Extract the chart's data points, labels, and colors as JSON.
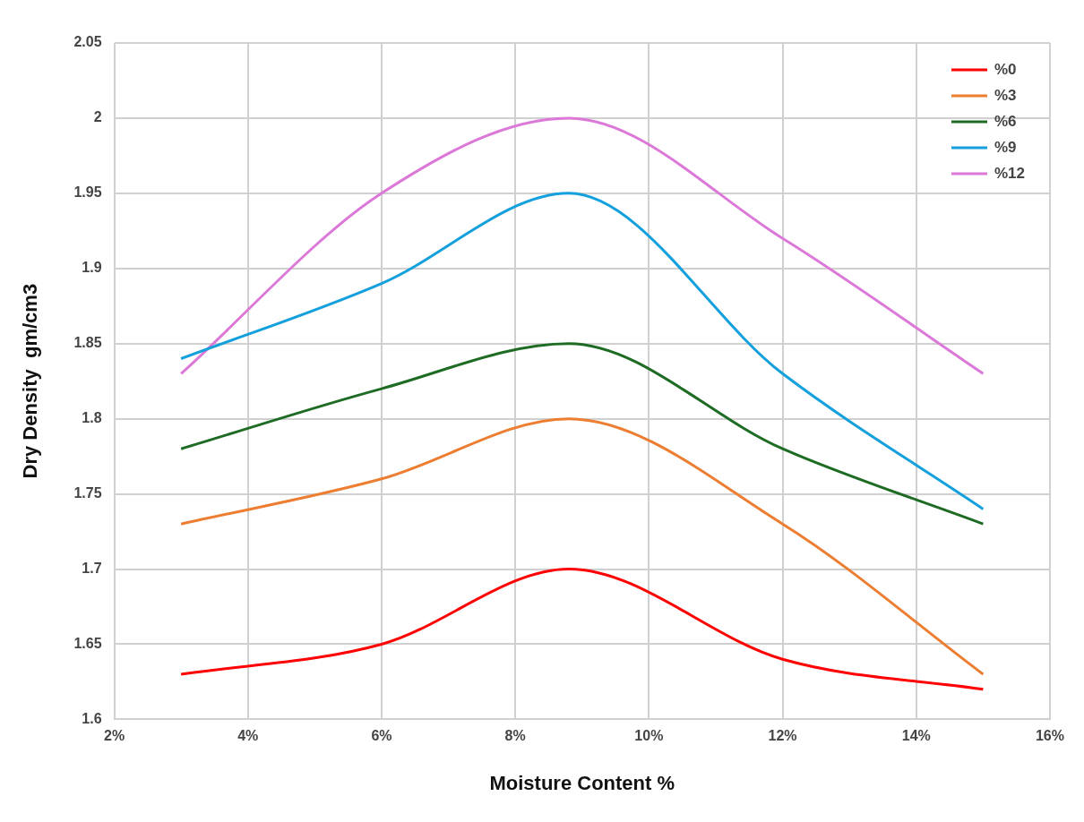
{
  "chart_data": {
    "type": "line",
    "xlabel": "Moisture Content %",
    "ylabel": "Dry Density  gm/cm3",
    "x": [
      3,
      6,
      8.8,
      12,
      15
    ],
    "series": [
      {
        "name": "%0",
        "color": "#ff0000",
        "values": [
          1.63,
          1.65,
          1.7,
          1.64,
          1.62
        ]
      },
      {
        "name": "%3",
        "color": "#ed7d31",
        "values": [
          1.73,
          1.76,
          1.8,
          1.73,
          1.63
        ]
      },
      {
        "name": "%6",
        "color": "#1e6b24",
        "values": [
          1.78,
          1.82,
          1.85,
          1.78,
          1.73
        ]
      },
      {
        "name": "%9",
        "color": "#14a0dc",
        "values": [
          1.84,
          1.89,
          1.95,
          1.83,
          1.74
        ]
      },
      {
        "name": "%12",
        "color": "#dc78d7",
        "values": [
          1.83,
          1.95,
          2.0,
          1.92,
          1.83
        ]
      }
    ],
    "xlim": [
      2,
      16
    ],
    "xticks": [
      {
        "value": 2,
        "label": "2%"
      },
      {
        "value": 4,
        "label": "4%"
      },
      {
        "value": 6,
        "label": "6%"
      },
      {
        "value": 8,
        "label": "8%"
      },
      {
        "value": 10,
        "label": "10%"
      },
      {
        "value": 12,
        "label": "12%"
      },
      {
        "value": 14,
        "label": "14%"
      },
      {
        "value": 16,
        "label": "16%"
      }
    ],
    "ylim": [
      1.6,
      2.05
    ],
    "yticks": [
      1.6,
      1.65,
      1.7,
      1.75,
      1.8,
      1.85,
      1.9,
      1.95,
      2,
      2.05
    ],
    "grid": true,
    "legend": "top right",
    "marker": "none",
    "line_style": "solid"
  }
}
